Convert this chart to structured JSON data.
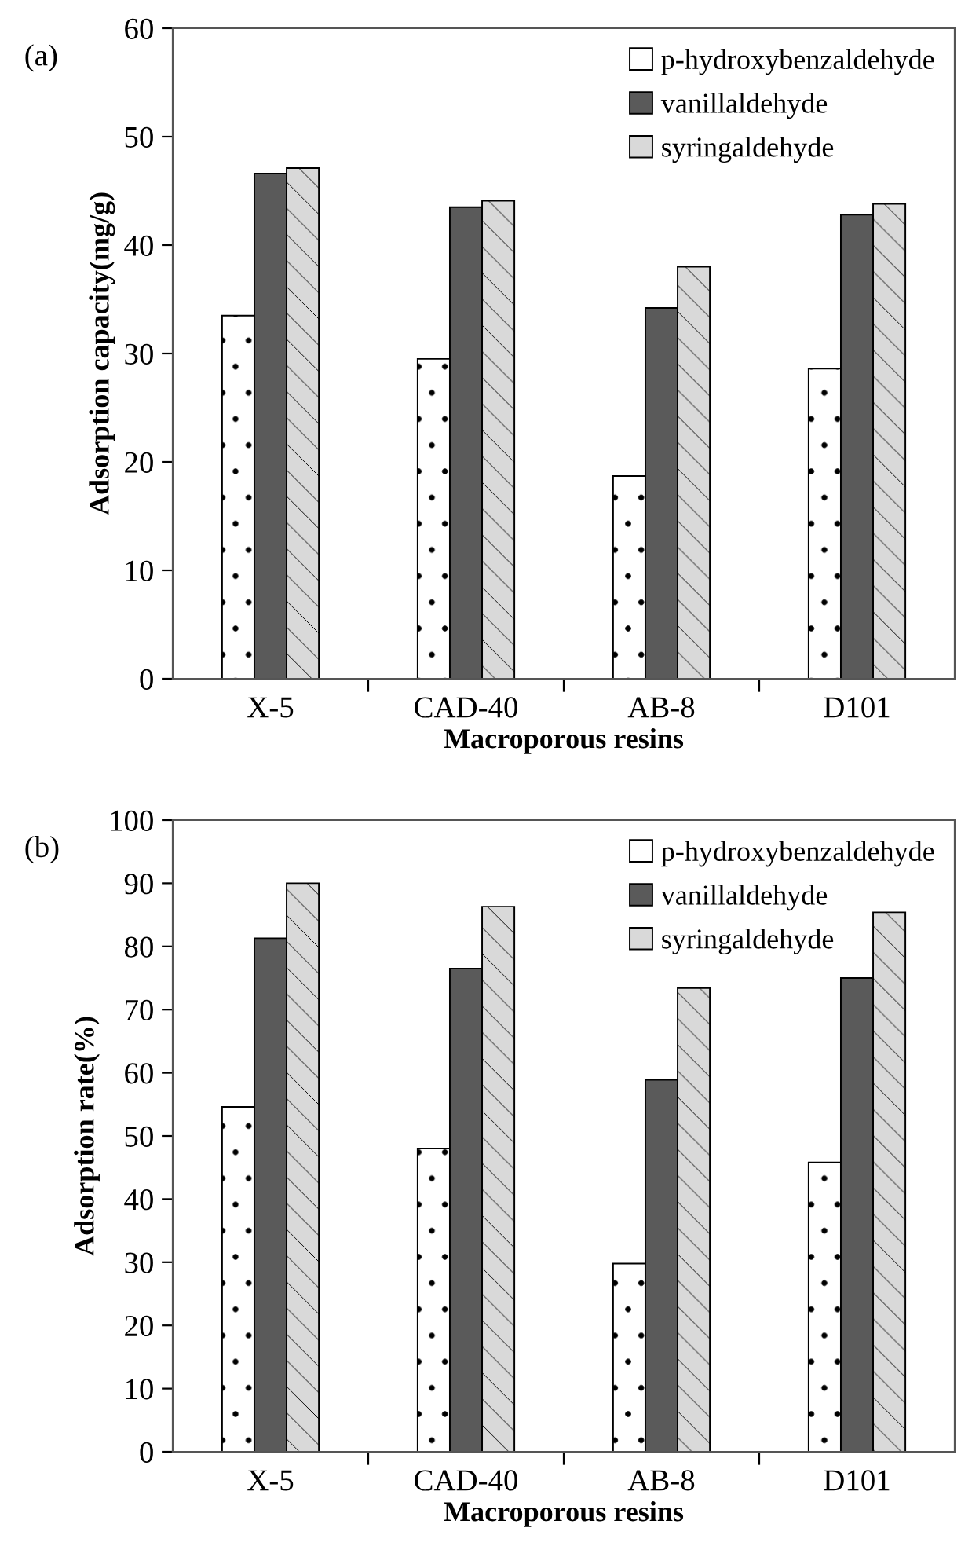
{
  "chart_data": [
    {
      "type": "bar",
      "title": "(a)",
      "xlabel": "Macroporous resins",
      "ylabel": "Adsorption capacity(mg/g)",
      "categories": [
        "X-5",
        "CAD-40",
        "AB-8",
        "D101"
      ],
      "series": [
        {
          "name": "p-hydroxybenzaldehyde",
          "color": "#ffffff",
          "values": [
            33.5,
            29.5,
            18.7,
            28.6
          ]
        },
        {
          "name": "vanillaldehyde",
          "color": "#5a5a5a",
          "values": [
            46.6,
            43.5,
            34.2,
            42.8
          ]
        },
        {
          "name": "syringaldehyde",
          "color": "#d9d9d9",
          "values": [
            47.1,
            44.1,
            38.0,
            43.8
          ]
        }
      ],
      "ylim": [
        0,
        60
      ],
      "yticks": [
        0,
        10,
        20,
        30,
        40,
        50,
        60
      ],
      "grid": false,
      "legend": "top right"
    },
    {
      "type": "bar",
      "title": "(b)",
      "xlabel": "Macroporous resins",
      "ylabel": "Adsorption rate(%)",
      "categories": [
        "X-5",
        "CAD-40",
        "AB-8",
        "D101"
      ],
      "series": [
        {
          "name": "p-hydroxybenzaldehyde",
          "color": "#ffffff",
          "values": [
            54.6,
            48.0,
            29.8,
            45.8
          ]
        },
        {
          "name": "vanillaldehyde",
          "color": "#5a5a5a",
          "values": [
            81.3,
            76.5,
            58.9,
            75.0
          ]
        },
        {
          "name": "syringaldehyde",
          "color": "#d9d9d9",
          "values": [
            90.0,
            86.3,
            73.4,
            85.4
          ]
        }
      ],
      "ylim": [
        0,
        100
      ],
      "yticks": [
        0,
        10,
        20,
        30,
        40,
        50,
        60,
        70,
        80,
        90,
        100
      ],
      "grid": false,
      "legend": "top right"
    }
  ]
}
